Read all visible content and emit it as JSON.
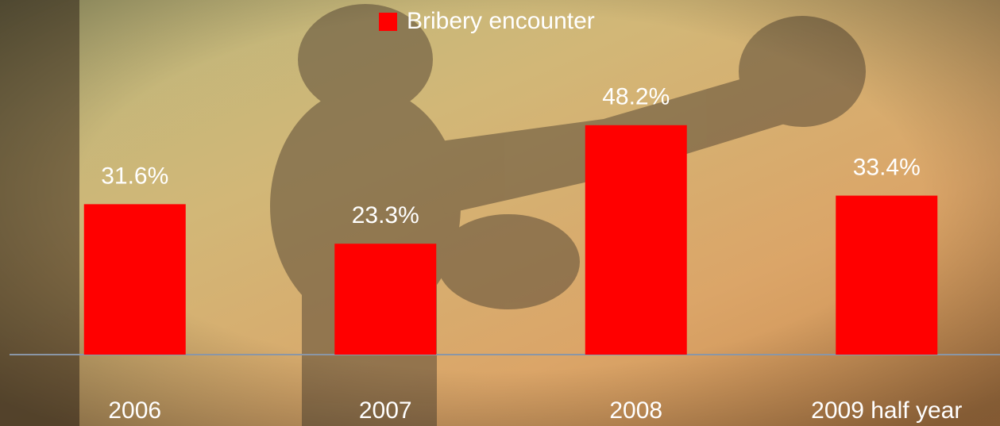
{
  "chart_data": {
    "type": "bar",
    "categories": [
      "2006",
      "2007",
      "2008",
      "2009 half year"
    ],
    "series": [
      {
        "name": "Bribery encounter",
        "color": "#ff0000",
        "values": [
          31.6,
          23.3,
          48.2,
          33.4
        ],
        "value_labels": [
          "31.6%",
          "23.3%",
          "48.2%",
          "33.4%"
        ]
      }
    ],
    "ylim": [
      0,
      60
    ]
  }
}
